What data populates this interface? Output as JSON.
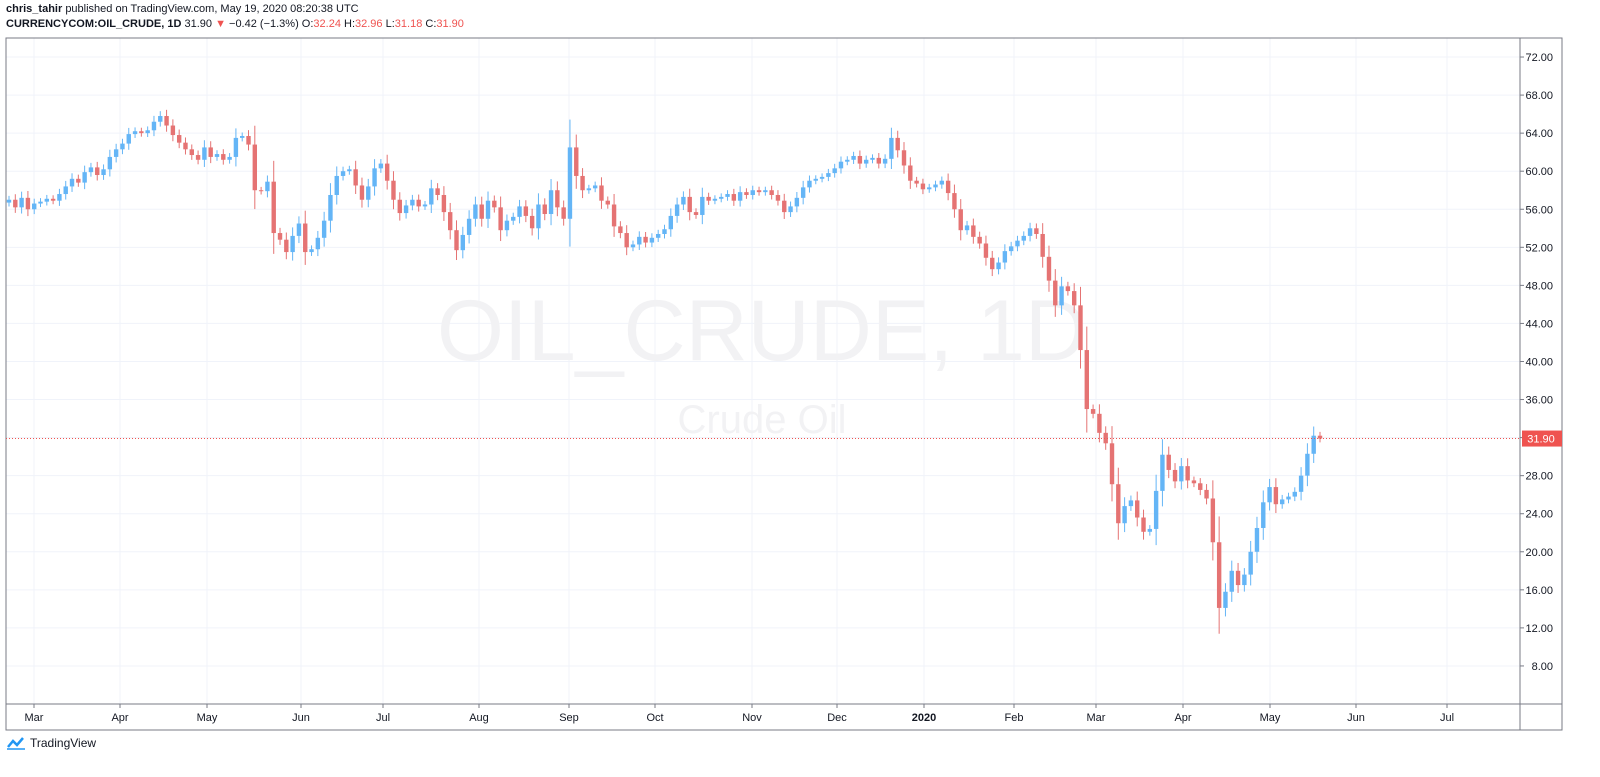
{
  "header": {
    "author": "chris_tahir",
    "published_text": "published on TradingView.com, May 19, 2020 08:20:38 UTC"
  },
  "legend": {
    "symbol": "CURRENCYCOM:OIL_CRUDE, 1D",
    "price": "31.90",
    "change": "−0.42 (−1.3%)",
    "o_label": "O:",
    "o_value": "32.24",
    "h_label": "H:",
    "h_value": "32.96",
    "l_label": "L:",
    "l_value": "31.18",
    "c_label": "C:",
    "c_value": "31.90"
  },
  "watermark": {
    "main": "OIL_CRUDE, 1D",
    "sub": "Crude Oil"
  },
  "price_label": "31.90",
  "footer": {
    "brand": "TradingView"
  },
  "colors": {
    "up": "#64b5f6",
    "down": "#e57373",
    "grid": "#f0f3fa",
    "axis": "#131722",
    "label_bg": "#ef5350"
  },
  "chart_data": {
    "type": "candlestick",
    "ylim": [
      4,
      74
    ],
    "y_ticks": [
      "72.00",
      "68.00",
      "64.00",
      "60.00",
      "56.00",
      "52.00",
      "48.00",
      "44.00",
      "40.00",
      "36.00",
      "32.00",
      "28.00",
      "24.00",
      "20.00",
      "16.00",
      "12.00",
      "8.00"
    ],
    "x_ticks": [
      "Mar",
      "Apr",
      "May",
      "Jun",
      "Jul",
      "Aug",
      "Sep",
      "Oct",
      "Nov",
      "Dec",
      "2020",
      "Feb",
      "Mar",
      "Apr",
      "May",
      "Jun",
      "Jul"
    ],
    "last_price": 31.9,
    "close_series": [
      57.0,
      56.2,
      57.2,
      56.0,
      56.6,
      56.8,
      57.1,
      56.9,
      57.6,
      58.4,
      59.2,
      58.8,
      59.9,
      60.4,
      59.6,
      60.2,
      61.5,
      62.3,
      62.9,
      63.9,
      64.2,
      64.0,
      64.3,
      65.2,
      65.8,
      64.8,
      63.8,
      63.0,
      62.3,
      61.7,
      61.2,
      62.5,
      61.5,
      61.8,
      61.2,
      61.5,
      63.5,
      63.7,
      62.8,
      58.0,
      57.9,
      58.9,
      53.5,
      52.8,
      51.5,
      53.2,
      54.5,
      51.5,
      51.8,
      53.0,
      54.8,
      57.5,
      59.5,
      60.0,
      60.2,
      58.5,
      57.0,
      58.4,
      60.3,
      60.8,
      59.0,
      57.0,
      55.6,
      56.4,
      57.0,
      56.3,
      56.5,
      58.2,
      57.5,
      55.7,
      53.8,
      51.7,
      53.3,
      55.0,
      56.5,
      55.0,
      56.9,
      56.2,
      53.8,
      54.8,
      55.2,
      56.3,
      55.3,
      54.0,
      56.5,
      55.5,
      58.0,
      56.2,
      55.0,
      62.5,
      59.5,
      58.0,
      58.2,
      58.5,
      56.9,
      56.5,
      54.2,
      53.5,
      52.0,
      52.3,
      53.1,
      52.5,
      53.0,
      53.4,
      53.9,
      55.3,
      56.5,
      57.3,
      55.7,
      55.4,
      57.3,
      56.9,
      57.1,
      57.3,
      57.6,
      56.9,
      57.8,
      57.5,
      58.0,
      57.8,
      58.0,
      57.5,
      56.9,
      55.7,
      56.3,
      57.2,
      58.3,
      59.0,
      59.2,
      59.4,
      59.8,
      60.3,
      61.0,
      61.2,
      61.6,
      60.8,
      61.2,
      61.4,
      60.8,
      61.3,
      63.5,
      62.2,
      60.6,
      59.0,
      58.7,
      58.1,
      58.3,
      58.6,
      59.0,
      57.7,
      56.0,
      53.8,
      54.3,
      53.1,
      52.4,
      50.9,
      49.7,
      50.4,
      51.6,
      52.1,
      52.7,
      53.2,
      54.0,
      53.4,
      51.0,
      48.5,
      45.9,
      47.9,
      47.4,
      45.9,
      41.2,
      35.0,
      34.5,
      32.5,
      31.4,
      27.1,
      23.0,
      24.8,
      25.4,
      23.6,
      22.1,
      22.4,
      26.4,
      30.2,
      28.6,
      27.4,
      29.0,
      27.5,
      27.2,
      26.5,
      25.6,
      21.0,
      14.1,
      15.8,
      18.0,
      16.5,
      17.6,
      20.0,
      22.5,
      25.2,
      26.8,
      25.0,
      25.5,
      25.8,
      26.3,
      28.0,
      30.3,
      32.2,
      31.9
    ]
  }
}
